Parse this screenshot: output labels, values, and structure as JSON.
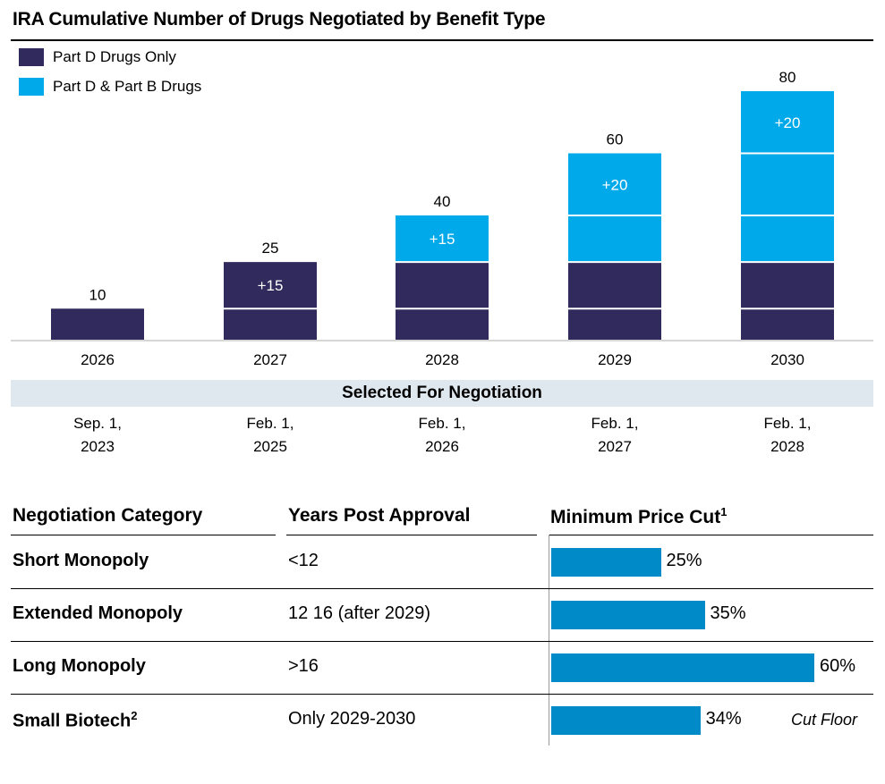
{
  "title": "IRA Cumulative Number of Drugs Negotiated by Benefit Type",
  "colors": {
    "part_d": "#312a5c",
    "part_db": "#00a9e9",
    "price_bar": "#008ac8",
    "axis": "#c8c8c8",
    "sel_bg": "#dfe7ef"
  },
  "legend": [
    {
      "label": "Part D Drugs Only",
      "color": "#312a5c"
    },
    {
      "label": "Part D & Part B Drugs",
      "color": "#00a9e9"
    }
  ],
  "chart_data": {
    "type": "bar",
    "title": "IRA Cumulative Number of Drugs Negotiated by Benefit Type",
    "stacked": true,
    "categories": [
      "2026",
      "2027",
      "2028",
      "2029",
      "2030"
    ],
    "ylim": [
      0,
      80
    ],
    "segments": [
      [
        {
          "start": 0,
          "end": 10,
          "series": "Part D Drugs Only"
        }
      ],
      [
        {
          "start": 0,
          "end": 10,
          "series": "Part D Drugs Only"
        },
        {
          "start": 10,
          "end": 25,
          "series": "Part D Drugs Only"
        }
      ],
      [
        {
          "start": 0,
          "end": 10,
          "series": "Part D Drugs Only"
        },
        {
          "start": 10,
          "end": 25,
          "series": "Part D Drugs Only"
        },
        {
          "start": 25,
          "end": 40,
          "series": "Part D & Part B Drugs"
        }
      ],
      [
        {
          "start": 0,
          "end": 10,
          "series": "Part D Drugs Only"
        },
        {
          "start": 10,
          "end": 25,
          "series": "Part D Drugs Only"
        },
        {
          "start": 25,
          "end": 40,
          "series": "Part D & Part B Drugs"
        },
        {
          "start": 40,
          "end": 60,
          "series": "Part D & Part B Drugs"
        }
      ],
      [
        {
          "start": 0,
          "end": 10,
          "series": "Part D Drugs Only"
        },
        {
          "start": 10,
          "end": 25,
          "series": "Part D Drugs Only"
        },
        {
          "start": 25,
          "end": 40,
          "series": "Part D & Part B Drugs"
        },
        {
          "start": 40,
          "end": 60,
          "series": "Part D & Part B Drugs"
        },
        {
          "start": 60,
          "end": 80,
          "series": "Part D & Part B Drugs"
        }
      ]
    ],
    "totals": [
      10,
      25,
      40,
      60,
      80
    ],
    "increment_labels": [
      {
        "category": "2027",
        "text": "+15",
        "start": 10,
        "end": 25
      },
      {
        "category": "2028",
        "text": "+15",
        "start": 25,
        "end": 40
      },
      {
        "category": "2029",
        "text": "+20",
        "start": 40,
        "end": 60
      },
      {
        "category": "2030",
        "text": "+20",
        "start": 60,
        "end": 80
      }
    ]
  },
  "selection": {
    "header": "Selected For Negotiation",
    "dates": [
      [
        "Sep. 1,",
        "2023"
      ],
      [
        "Feb. 1,",
        "2025"
      ],
      [
        "Feb. 1,",
        "2026"
      ],
      [
        "Feb. 1,",
        "2027"
      ],
      [
        "Feb. 1,",
        "2028"
      ]
    ]
  },
  "table": {
    "headers": {
      "category": "Negotiation Category",
      "years": "Years Post Approval",
      "price": "Minimum Price Cut",
      "price_sup": "1"
    },
    "rows": [
      {
        "category": "Short Monopoly",
        "sup": "",
        "years": "<12",
        "price_cut": 25,
        "label": "25%"
      },
      {
        "category": "Extended Monopoly",
        "sup": "",
        "years": "12 16 (after 2029)",
        "price_cut": 35,
        "label": "35%"
      },
      {
        "category": "Long Monopoly",
        "sup": "",
        "years": ">16",
        "price_cut": 60,
        "label": "60%"
      },
      {
        "category": "Small Biotech",
        "sup": "2",
        "years": "Only 2029-2030",
        "price_cut": 34,
        "label": "34%"
      }
    ],
    "note": "Cut Floor"
  }
}
